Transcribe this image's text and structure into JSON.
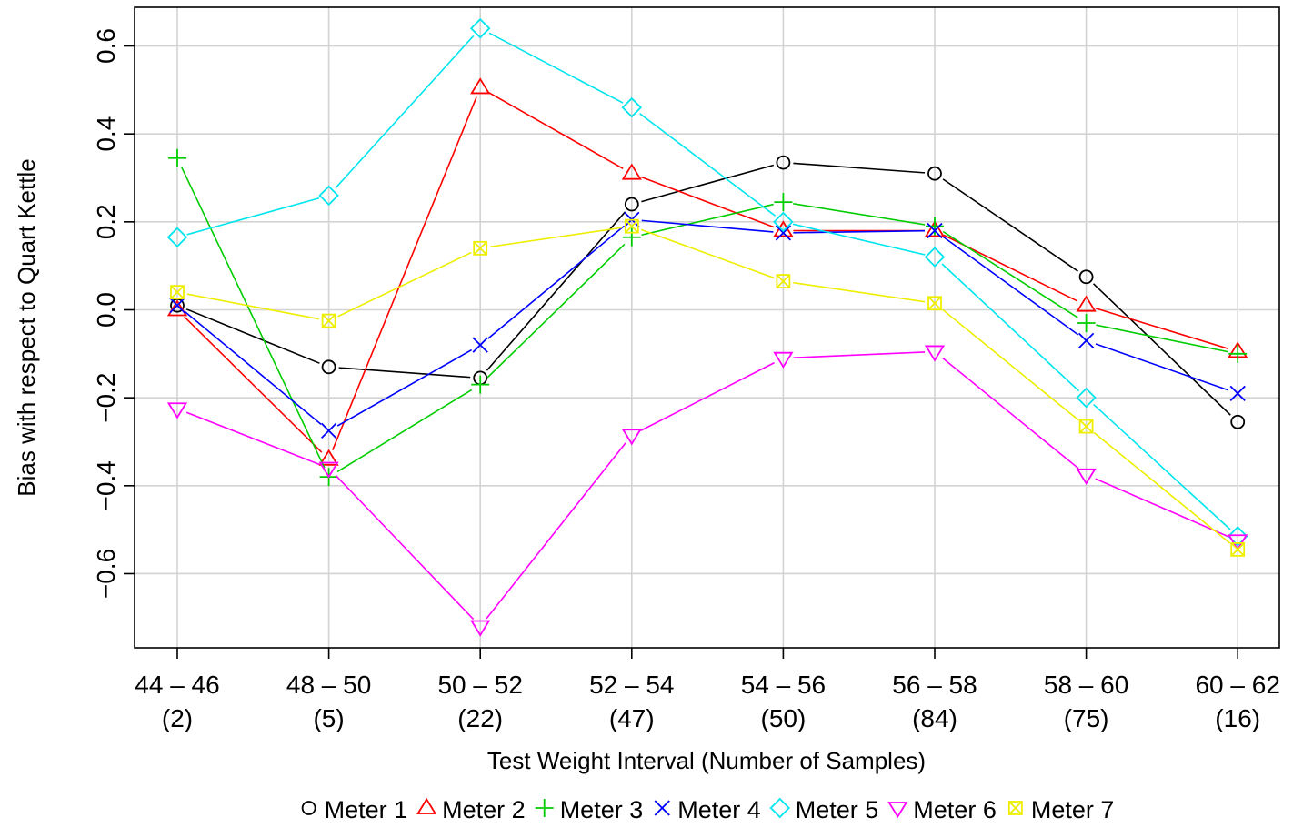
{
  "chart_data": {
    "type": "line",
    "title": "",
    "xlabel": "Test Weight Interval (Number of Samples)",
    "ylabel": "Bias with respect to Quart Kettle",
    "categories": [
      "44 – 46",
      "48 – 50",
      "50 – 52",
      "52 – 54",
      "54 – 56",
      "56 – 58",
      "58 – 60",
      "60 – 62"
    ],
    "sample_counts": [
      "(2)",
      "(5)",
      "(22)",
      "(47)",
      "(50)",
      "(84)",
      "(75)",
      "(16)"
    ],
    "yticks": [
      -0.6,
      -0.4,
      -0.2,
      0.0,
      0.2,
      0.4,
      0.6
    ],
    "ytick_labels": [
      "−0.6",
      "−0.4",
      "−0.2",
      "0.0",
      "0.2",
      "0.4",
      "0.6"
    ],
    "ylim": [
      -0.76,
      0.68
    ],
    "grid": true,
    "legend_position": "bottom",
    "series": [
      {
        "name": "Meter 1",
        "color": "#000000",
        "marker": "circle",
        "values": [
          0.01,
          -0.13,
          -0.155,
          0.24,
          0.335,
          0.31,
          0.075,
          -0.255
        ]
      },
      {
        "name": "Meter 2",
        "color": "#ff0000",
        "marker": "triangle-up",
        "values": [
          0.0,
          -0.34,
          0.505,
          0.31,
          0.18,
          0.18,
          0.01,
          -0.095
        ]
      },
      {
        "name": "Meter 3",
        "color": "#00cd00",
        "marker": "plus",
        "values": [
          0.345,
          -0.38,
          -0.17,
          0.165,
          0.245,
          0.19,
          -0.03,
          -0.1
        ]
      },
      {
        "name": "Meter 4",
        "color": "#0000ff",
        "marker": "x",
        "values": [
          0.01,
          -0.275,
          -0.08,
          0.205,
          0.175,
          0.18,
          -0.07,
          -0.19
        ]
      },
      {
        "name": "Meter 5",
        "color": "#00e5ee",
        "marker": "diamond",
        "values": [
          0.165,
          0.26,
          0.64,
          0.46,
          0.2,
          0.12,
          -0.2,
          -0.515
        ]
      },
      {
        "name": "Meter 6",
        "color": "#ff00ff",
        "marker": "triangle-down",
        "values": [
          -0.225,
          -0.36,
          -0.72,
          -0.285,
          -0.11,
          -0.095,
          -0.375,
          -0.525
        ]
      },
      {
        "name": "Meter 7",
        "color": "#eeee00",
        "marker": "box-x",
        "values": [
          0.04,
          -0.025,
          0.14,
          0.19,
          0.065,
          0.015,
          -0.265,
          -0.545
        ]
      }
    ]
  }
}
